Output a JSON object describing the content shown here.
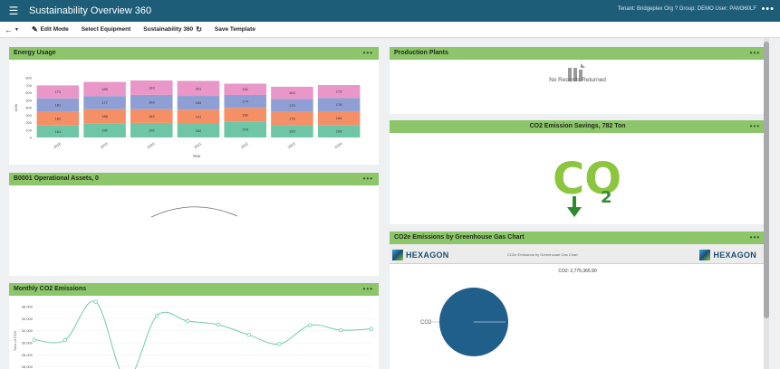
{
  "app": {
    "title": "Sustainability Overview 360",
    "tenant_info": "Tenant: Bridgeplex Org ? Group: DEMO User: PAM360LF",
    "menu_icon": "hamburger-icon",
    "more_icon": "more-horizontal-icon"
  },
  "toolbar": {
    "edit_mode_label": "Edit Mode",
    "select_equipment_label": "Select Equipment",
    "template_label": "Sustainability 360",
    "save_template_label": "Save Template"
  },
  "energy": {
    "title": "Energy Usage",
    "chart_data": {
      "type": "bar",
      "stacked": true,
      "categories": [
        "2018",
        "2019",
        "2020",
        "2021",
        "2022",
        "2023",
        "2024"
      ],
      "series": [
        {
          "color": "#6fc6a6",
          "values": [
            161,
            190,
            195,
            182,
            216,
            165,
            168
          ]
        },
        {
          "color": "#f58f66",
          "values": [
            182,
            188,
            183,
            191,
            180,
            176,
            184
          ]
        },
        {
          "color": "#8f9fd4",
          "values": [
            181,
            177,
            193,
            184,
            174,
            175,
            178
          ]
        },
        {
          "color": "#e996c9",
          "values": [
            174,
            189,
            193,
            201,
            151,
            164,
            173
          ]
        }
      ],
      "ylabel": "kWh",
      "xlabel": "Year",
      "yticks": [
        "0",
        "100",
        "200",
        "300",
        "400",
        "500",
        "600",
        "700",
        "800"
      ],
      "ylim": [
        0,
        800
      ]
    }
  },
  "assets": {
    "title": "B0001 Operational Assets, 0"
  },
  "monthly": {
    "title": "Monthly CO2 Emissions",
    "chart_data": {
      "type": "line",
      "ylabel": "Tons of CO2",
      "yticks": [
        "24,000",
        "26,000",
        "28,000",
        "30,000",
        "32,000",
        "34,000",
        "36,000"
      ],
      "ylim": [
        24000,
        36000
      ],
      "values": [
        30500,
        30450,
        36800,
        24000,
        34500,
        33600,
        33000,
        31300,
        29800,
        32900,
        32100,
        32300
      ],
      "line_color": "#74c9b1"
    }
  },
  "production": {
    "title": "Production Plants",
    "empty_text": "No Records Returned"
  },
  "co2savings": {
    "title": "CO2 Emission Savings, 782 Ton",
    "logo_main": "CO",
    "logo_sub": "2"
  },
  "ghg": {
    "title": "CO2e Emissions by Greenhouse Gas Chart",
    "brand": "HEXAGON",
    "report_caption": "CO2e Emissions by Greenhouse Gas Chart",
    "pie_title": "CO2: 2,775,365.90",
    "chart_data": {
      "type": "pie",
      "slices": [
        {
          "label": "CO2",
          "value": 2775365.9,
          "color": "#205f8a"
        }
      ]
    }
  }
}
